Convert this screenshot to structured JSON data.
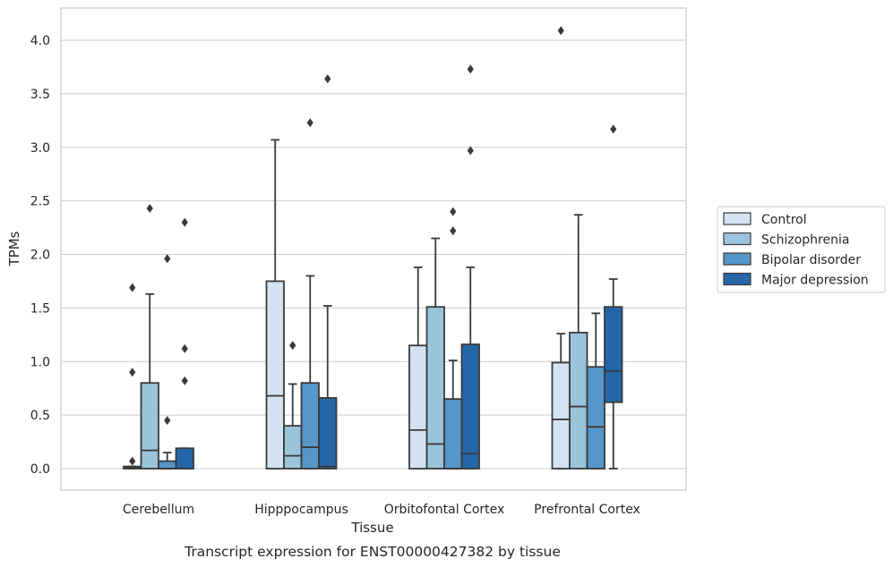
{
  "caption": "Transcript expression for ENST00000427382 by tissue",
  "chart_data": {
    "type": "box",
    "xlabel": "Tissue",
    "ylabel": "TPMs",
    "ylim": [
      -0.2,
      4.3
    ],
    "yticks": [
      "0.0",
      "0.5",
      "1.0",
      "1.5",
      "2.0",
      "2.5",
      "3.0",
      "3.5",
      "4.0"
    ],
    "grid": "horizontal",
    "legend_position": "right",
    "categories": [
      "Cerebellum",
      "Hipppocampus",
      "Orbitofontal Cortex",
      "Prefrontal Cortex"
    ],
    "series": [
      {
        "name": "Control",
        "color": "#d4e3f2",
        "boxes": [
          {
            "whislo": 0.0,
            "q1": 0.0,
            "med": 0.01,
            "q3": 0.02,
            "whishi": 0.02,
            "fliers": [
              0.07,
              0.9,
              1.69
            ]
          },
          {
            "whislo": 0.0,
            "q1": 0.0,
            "med": 0.68,
            "q3": 1.75,
            "whishi": 3.07,
            "fliers": []
          },
          {
            "whislo": 0.0,
            "q1": 0.0,
            "med": 0.36,
            "q3": 1.15,
            "whishi": 1.88,
            "fliers": []
          },
          {
            "whislo": 0.0,
            "q1": 0.0,
            "med": 0.46,
            "q3": 0.99,
            "whishi": 1.26,
            "fliers": [
              4.09
            ]
          }
        ]
      },
      {
        "name": "Schizophrenia",
        "color": "#9ac3dc",
        "boxes": [
          {
            "whislo": 0.0,
            "q1": 0.0,
            "med": 0.17,
            "q3": 0.8,
            "whishi": 1.63,
            "fliers": [
              2.43
            ]
          },
          {
            "whislo": 0.0,
            "q1": 0.0,
            "med": 0.12,
            "q3": 0.4,
            "whishi": 0.79,
            "fliers": [
              1.15
            ]
          },
          {
            "whislo": 0.0,
            "q1": 0.0,
            "med": 0.23,
            "q3": 1.51,
            "whishi": 2.15,
            "fliers": []
          },
          {
            "whislo": 0.0,
            "q1": 0.0,
            "med": 0.58,
            "q3": 1.27,
            "whishi": 2.37,
            "fliers": []
          }
        ]
      },
      {
        "name": "Bipolar disorder",
        "color": "#5696c8",
        "boxes": [
          {
            "whislo": 0.0,
            "q1": 0.0,
            "med": 0.0,
            "q3": 0.07,
            "whishi": 0.15,
            "fliers": [
              0.45,
              1.96
            ]
          },
          {
            "whislo": 0.0,
            "q1": 0.0,
            "med": 0.2,
            "q3": 0.8,
            "whishi": 1.8,
            "fliers": [
              3.23
            ]
          },
          {
            "whislo": 0.0,
            "q1": 0.0,
            "med": 0.0,
            "q3": 0.65,
            "whishi": 1.01,
            "fliers": [
              2.22,
              2.4
            ]
          },
          {
            "whislo": 0.0,
            "q1": 0.0,
            "med": 0.39,
            "q3": 0.95,
            "whishi": 1.45,
            "fliers": []
          }
        ]
      },
      {
        "name": "Major depression",
        "color": "#2466a8",
        "boxes": [
          {
            "whislo": 0.0,
            "q1": 0.0,
            "med": 0.0,
            "q3": 0.19,
            "whishi": 0.19,
            "fliers": [
              0.82,
              1.12,
              2.3
            ]
          },
          {
            "whislo": 0.0,
            "q1": 0.0,
            "med": 0.02,
            "q3": 0.66,
            "whishi": 1.52,
            "fliers": [
              3.64
            ]
          },
          {
            "whislo": 0.0,
            "q1": 0.0,
            "med": 0.14,
            "q3": 1.16,
            "whishi": 1.88,
            "fliers": [
              2.97,
              3.73
            ]
          },
          {
            "whislo": 0.0,
            "q1": 0.62,
            "med": 0.91,
            "q3": 1.51,
            "whishi": 1.77,
            "fliers": [
              3.17
            ]
          }
        ]
      }
    ]
  }
}
